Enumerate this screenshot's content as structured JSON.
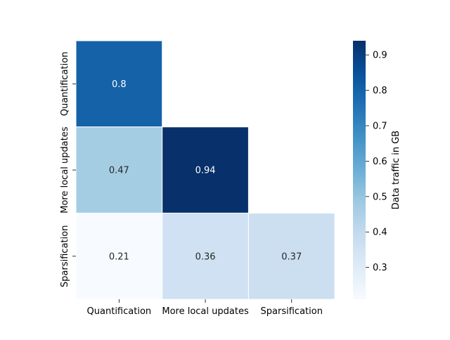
{
  "chart_data": {
    "type": "heatmap",
    "mask": "lower-triangle",
    "x_labels": [
      "Quantification",
      "More local updates",
      "Sparsification"
    ],
    "y_labels": [
      "Quantification",
      "More local updates",
      "Sparsification"
    ],
    "cells": [
      {
        "row": 0,
        "col": 0,
        "value": 0.8,
        "label": "0.8"
      },
      {
        "row": 1,
        "col": 0,
        "value": 0.47,
        "label": "0.47"
      },
      {
        "row": 1,
        "col": 1,
        "value": 0.94,
        "label": "0.94"
      },
      {
        "row": 2,
        "col": 0,
        "value": 0.21,
        "label": "0.21"
      },
      {
        "row": 2,
        "col": 1,
        "value": 0.36,
        "label": "0.36"
      },
      {
        "row": 2,
        "col": 2,
        "value": 0.37,
        "label": "0.37"
      }
    ],
    "colorbar": {
      "label": "Data traffic in GB",
      "colormap": "Blues",
      "range": [
        0.21,
        0.94
      ],
      "ticks": [
        0.3,
        0.4,
        0.5,
        0.6,
        0.7,
        0.8,
        0.9
      ],
      "tick_labels": [
        "0.3",
        "0.4",
        "0.5",
        "0.6",
        "0.7",
        "0.8",
        "0.9"
      ]
    },
    "grid": false
  }
}
